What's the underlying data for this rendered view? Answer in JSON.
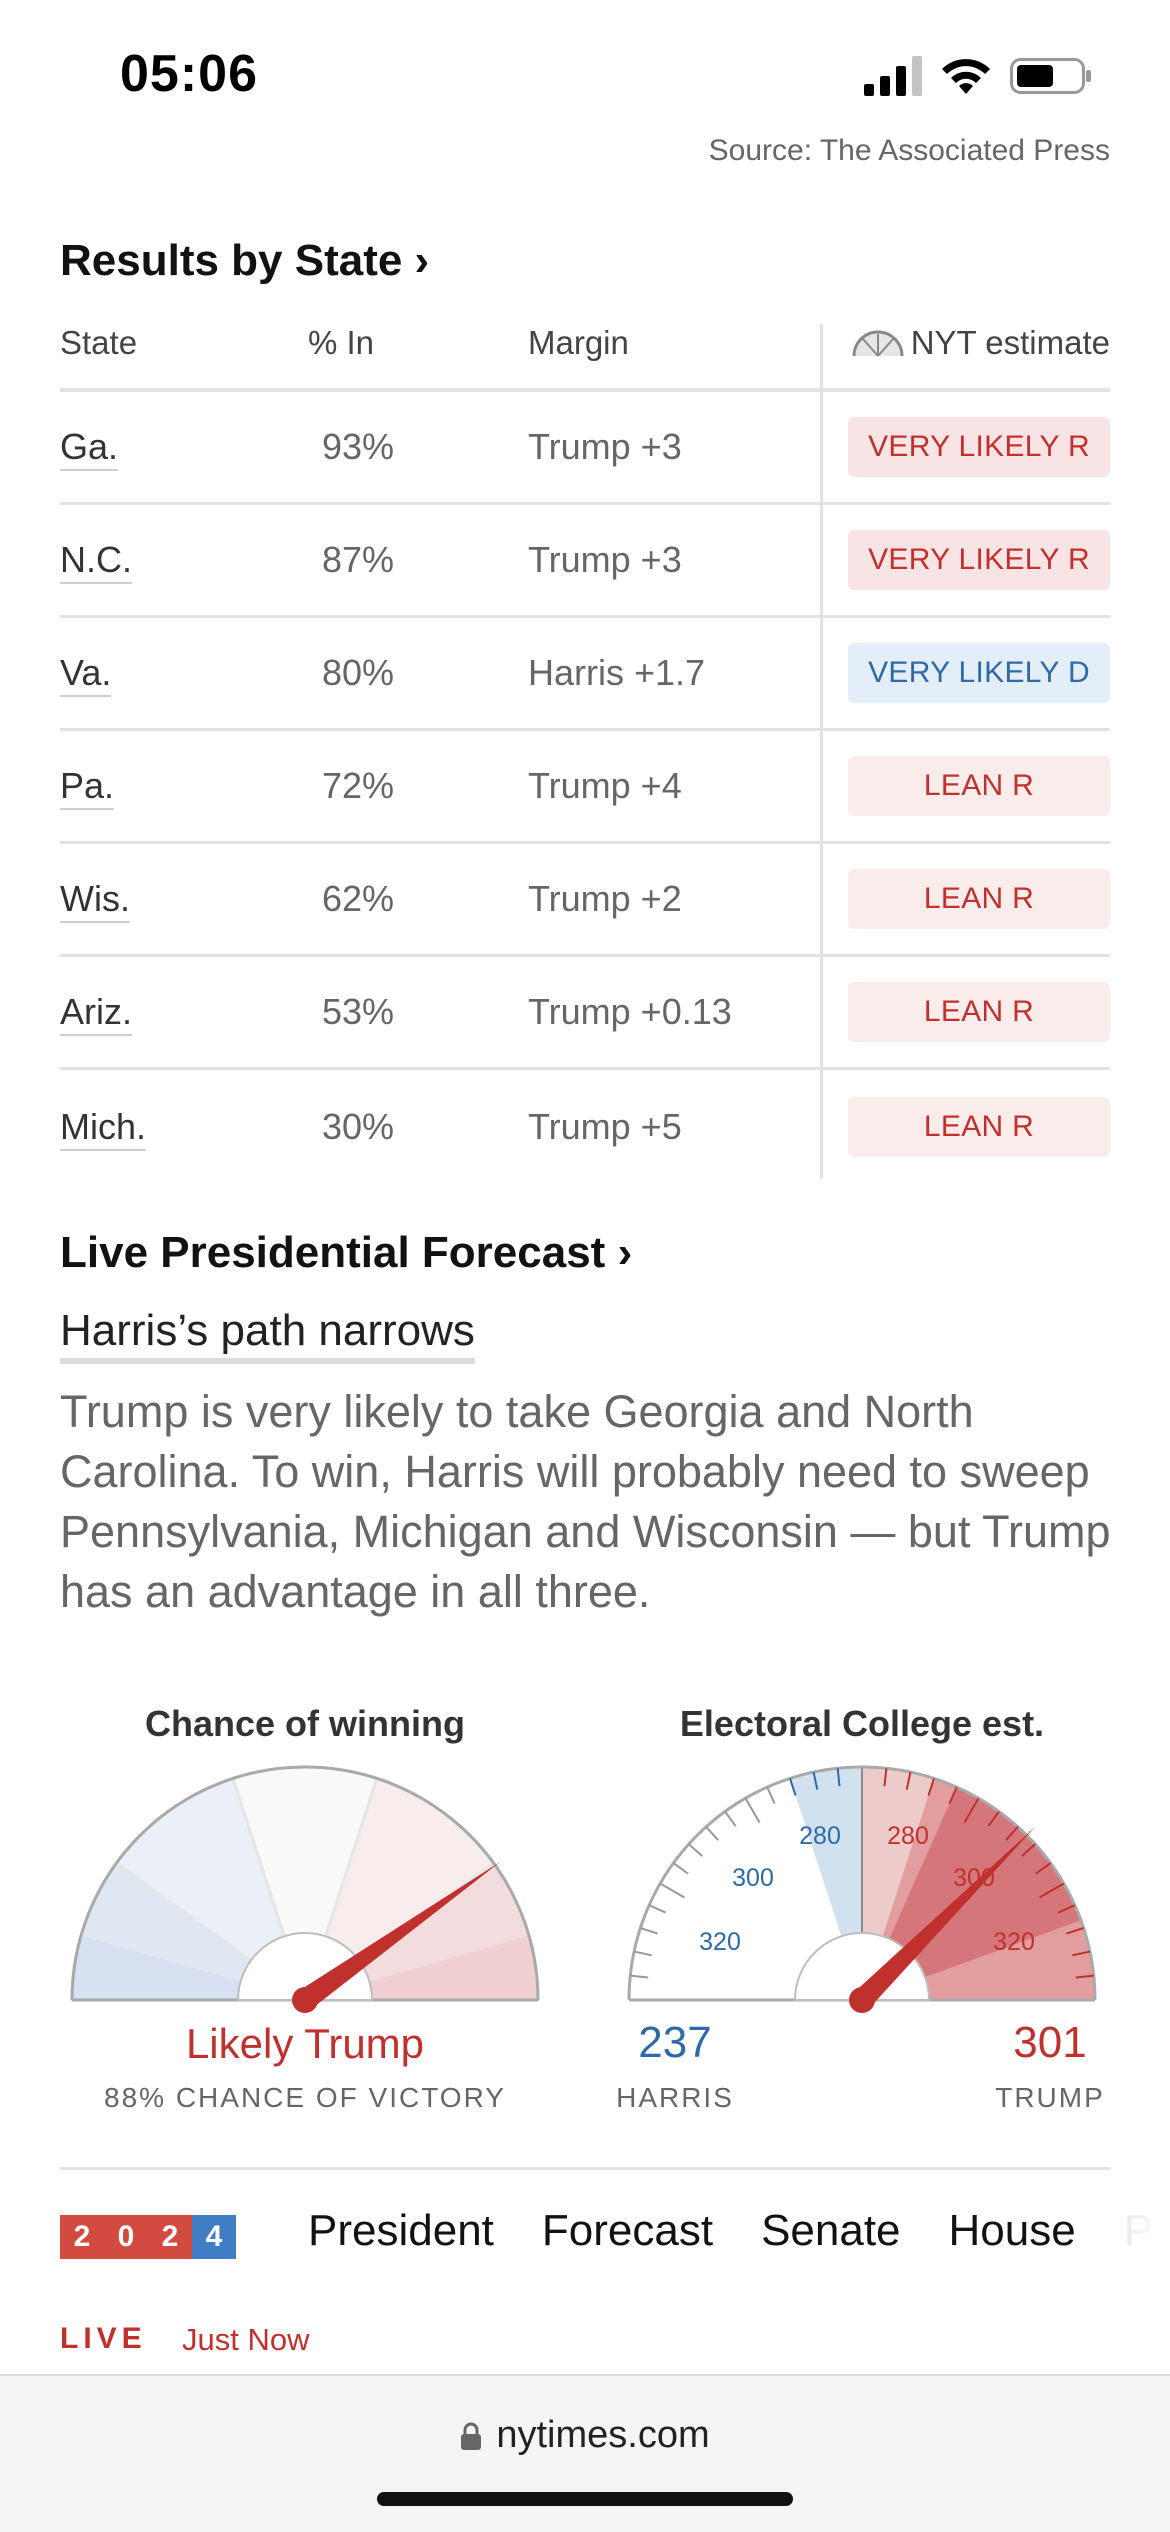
{
  "status": {
    "time": "05:06"
  },
  "source": "Source: The Associated Press",
  "results": {
    "title": "Results by State ›",
    "headers": {
      "state": "State",
      "pct_in": "% In",
      "margin": "Margin",
      "estimate": "NYT estimate"
    },
    "rows": [
      {
        "state": "Ga.",
        "pct_in": "93%",
        "margin": "Trump +3",
        "estimate": "VERY LIKELY R",
        "party": "R"
      },
      {
        "state": "N.C.",
        "pct_in": "87%",
        "margin": "Trump +3",
        "estimate": "VERY LIKELY R",
        "party": "R"
      },
      {
        "state": "Va.",
        "pct_in": "80%",
        "margin": "Harris +1.7",
        "estimate": "VERY LIKELY D",
        "party": "D"
      },
      {
        "state": "Pa.",
        "pct_in": "72%",
        "margin": "Trump +4",
        "estimate": "LEAN R",
        "party": "LR"
      },
      {
        "state": "Wis.",
        "pct_in": "62%",
        "margin": "Trump +2",
        "estimate": "LEAN R",
        "party": "LR"
      },
      {
        "state": "Ariz.",
        "pct_in": "53%",
        "margin": "Trump +0.13",
        "estimate": "LEAN R",
        "party": "LR"
      },
      {
        "state": "Mich.",
        "pct_in": "30%",
        "margin": "Trump +5",
        "estimate": "LEAN R",
        "party": "LR"
      }
    ]
  },
  "forecast": {
    "title": "Live Presidential Forecast ›",
    "headline": "Harris’s path narrows",
    "summary": "Trump is very likely to take Georgia and North Carolina. To win, Harris will probably need to sweep Pennsylvania, Michigan and Wisconsin — but Trump has an advantage in all three."
  },
  "chance_gauge": {
    "title": "Chance of winning",
    "label": "Likely Trump",
    "sublabel": "88% CHANCE OF VICTORY",
    "trump_chance_pct": 88
  },
  "electoral_gauge": {
    "title": "Electoral College est.",
    "harris_votes": "237",
    "harris_label": "HARRIS",
    "trump_votes": "301",
    "trump_label": "TRUMP",
    "harris_ticks": [
      "280",
      "300",
      "320"
    ],
    "trump_ticks": [
      "280",
      "300",
      "320"
    ]
  },
  "nav": {
    "logo_digits": [
      "2",
      "0",
      "2",
      "4"
    ],
    "items": [
      "President",
      "Forecast",
      "Senate",
      "House",
      "P"
    ]
  },
  "live": {
    "label": "LIVE",
    "time": "Just Now"
  },
  "browser": {
    "url": "nytimes.com"
  },
  "colors": {
    "republican": "#c0312d",
    "democrat": "#2f6aa6",
    "needle": "#c0312d"
  }
}
